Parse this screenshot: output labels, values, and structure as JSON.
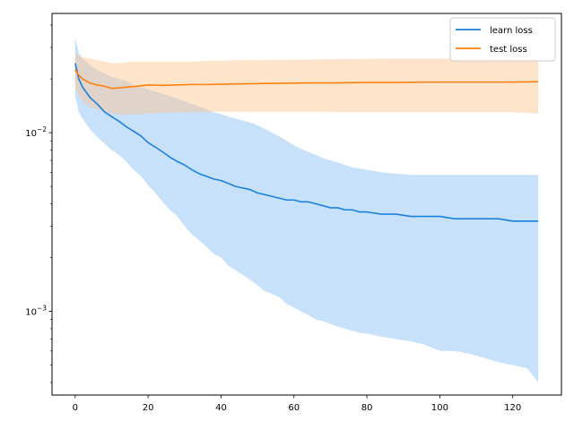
{
  "chart_data": {
    "type": "line",
    "title": "",
    "xlabel": "",
    "ylabel": "",
    "xlim": [
      -6.35,
      133.35
    ],
    "ylim": [
      0.00034,
      0.0465
    ],
    "yscale": "log",
    "grid": false,
    "legend": "top-right",
    "x_ticks": [
      0,
      20,
      40,
      60,
      80,
      100,
      120
    ],
    "x_tick_labels": [
      "0",
      "20",
      "40",
      "60",
      "80",
      "100",
      "120"
    ],
    "y_major_ticks": [
      0.001,
      0.01
    ],
    "y_tick_labels": [
      {
        "base": "10",
        "exp": "−3"
      },
      {
        "base": "10",
        "exp": "−2"
      }
    ],
    "y_minor_ticks": [
      0.0004,
      0.0005,
      0.0006,
      0.0007,
      0.0008,
      0.0009,
      0.002,
      0.003,
      0.004,
      0.005,
      0.006,
      0.007,
      0.008,
      0.009,
      0.02,
      0.03,
      0.04
    ],
    "series": [
      {
        "name": "learn loss",
        "color": "#1f77b4",
        "line_color": "#1a80e0",
        "band_color": "#8fc4f5",
        "x": [
          0,
          1,
          2,
          4,
          6,
          8,
          10,
          12,
          14,
          16,
          18,
          20,
          22,
          24,
          26,
          28,
          30,
          32,
          34,
          36,
          38,
          40,
          42,
          44,
          46,
          48,
          50,
          52,
          54,
          56,
          58,
          60,
          62,
          64,
          66,
          68,
          70,
          72,
          74,
          76,
          78,
          80,
          84,
          88,
          92,
          96,
          100,
          104,
          108,
          112,
          116,
          120,
          124,
          127
        ],
        "mean": [
          0.0245,
          0.02,
          0.018,
          0.0158,
          0.0145,
          0.0131,
          0.0123,
          0.0116,
          0.0108,
          0.0102,
          0.0096,
          0.0088,
          0.0083,
          0.0078,
          0.0073,
          0.0069,
          0.0066,
          0.0062,
          0.0059,
          0.0057,
          0.0055,
          0.0054,
          0.0052,
          0.005,
          0.0049,
          0.0048,
          0.0046,
          0.0045,
          0.0044,
          0.0043,
          0.0042,
          0.0042,
          0.0041,
          0.0041,
          0.004,
          0.0039,
          0.0038,
          0.0038,
          0.0037,
          0.0037,
          0.0036,
          0.0036,
          0.0035,
          0.0035,
          0.0034,
          0.0034,
          0.0034,
          0.0033,
          0.0033,
          0.0033,
          0.0033,
          0.0032,
          0.0032,
          0.0032
        ],
        "upper": [
          0.034,
          0.028,
          0.026,
          0.024,
          0.0225,
          0.0215,
          0.0205,
          0.02,
          0.0195,
          0.0185,
          0.018,
          0.0175,
          0.017,
          0.0165,
          0.016,
          0.0155,
          0.015,
          0.0145,
          0.014,
          0.0135,
          0.013,
          0.0127,
          0.0123,
          0.012,
          0.0117,
          0.0114,
          0.011,
          0.0105,
          0.01,
          0.0095,
          0.009,
          0.0085,
          0.0081,
          0.0078,
          0.0075,
          0.0072,
          0.007,
          0.0068,
          0.0066,
          0.0064,
          0.0063,
          0.0062,
          0.006,
          0.0059,
          0.0058,
          0.0058,
          0.0058,
          0.0058,
          0.0058,
          0.0058,
          0.0058,
          0.0058,
          0.0058,
          0.0058
        ],
        "lower": [
          0.016,
          0.013,
          0.012,
          0.0105,
          0.0095,
          0.0087,
          0.008,
          0.0075,
          0.0069,
          0.0062,
          0.0057,
          0.0051,
          0.0046,
          0.0041,
          0.0037,
          0.0034,
          0.003,
          0.0027,
          0.0025,
          0.0023,
          0.0021,
          0.002,
          0.0018,
          0.0017,
          0.0016,
          0.0015,
          0.0014,
          0.0013,
          0.00125,
          0.0012,
          0.0011,
          0.00105,
          0.001,
          0.00095,
          0.0009,
          0.00088,
          0.00085,
          0.00082,
          0.0008,
          0.00078,
          0.00076,
          0.00075,
          0.00072,
          0.0007,
          0.00068,
          0.00065,
          0.0006,
          0.0006,
          0.00058,
          0.00055,
          0.00052,
          0.0005,
          0.00048,
          0.0004
        ]
      },
      {
        "name": "test loss",
        "color": "#ff7f0e",
        "line_color": "#ff7f0e",
        "band_color": "#ffc48f",
        "x": [
          0,
          1,
          2,
          4,
          6,
          8,
          10,
          12,
          14,
          16,
          18,
          20,
          24,
          28,
          32,
          36,
          40,
          48,
          56,
          64,
          72,
          80,
          88,
          96,
          104,
          112,
          120,
          127
        ],
        "mean": [
          0.0225,
          0.021,
          0.02,
          0.019,
          0.0185,
          0.0182,
          0.0177,
          0.0178,
          0.018,
          0.0181,
          0.0183,
          0.0185,
          0.0184,
          0.0185,
          0.0186,
          0.0186,
          0.0187,
          0.0188,
          0.0189,
          0.019,
          0.019,
          0.0191,
          0.0191,
          0.0192,
          0.0192,
          0.0192,
          0.0192,
          0.0193
        ],
        "upper": [
          0.028,
          0.027,
          0.0265,
          0.026,
          0.0255,
          0.025,
          0.0245,
          0.0245,
          0.0248,
          0.025,
          0.025,
          0.025,
          0.025,
          0.025,
          0.025,
          0.0252,
          0.0253,
          0.0255,
          0.0256,
          0.0257,
          0.0258,
          0.0259,
          0.026,
          0.026,
          0.026,
          0.026,
          0.026,
          0.026
        ],
        "lower": [
          0.018,
          0.016,
          0.015,
          0.014,
          0.0135,
          0.013,
          0.0128,
          0.0127,
          0.0126,
          0.0126,
          0.0127,
          0.0128,
          0.0129,
          0.013,
          0.013,
          0.0131,
          0.0131,
          0.0131,
          0.0131,
          0.0131,
          0.013,
          0.013,
          0.013,
          0.013,
          0.013,
          0.013,
          0.013,
          0.0128
        ]
      }
    ]
  }
}
